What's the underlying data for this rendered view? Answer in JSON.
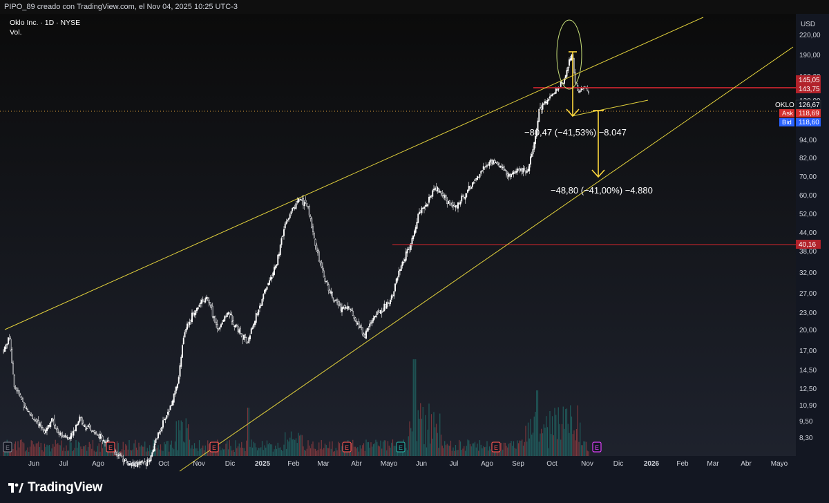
{
  "header": {
    "attribution": "PIPO_89 creado con TradingView.com, el Nov 04, 2025 10:25 UTC-3"
  },
  "legend": {
    "symbol": "Oklo Inc. · 1D · NYSE",
    "volume": "Vol."
  },
  "price_axis": {
    "currency": "USD",
    "ticks": [
      "220,00",
      "190,00",
      "160,00",
      "120,00",
      "94,00",
      "82,00",
      "70,00",
      "60,00",
      "52,00",
      "44,00",
      "38,00",
      "32,00",
      "27,00",
      "23,00",
      "20,00",
      "17,00",
      "14,50",
      "12,50",
      "10,90",
      "9,50",
      "8,30"
    ]
  },
  "price_labels": {
    "level_1": "145,05",
    "level_2": "143,75",
    "symbol_tag": "OKLO",
    "last": "126,67",
    "ask_label": "Ask",
    "ask": "118,69",
    "bid_label": "Bid",
    "bid": "118,60",
    "level_3": "40,16"
  },
  "time_axis": [
    "Jun",
    "Jul",
    "Ago",
    "Sep",
    "Oct",
    "Nov",
    "Dic",
    "2025",
    "Feb",
    "Mar",
    "Abr",
    "Mayo",
    "Jun",
    "Jul",
    "Ago",
    "Sep",
    "Oct",
    "Nov",
    "Dic",
    "2026",
    "Feb",
    "Mar",
    "Abr",
    "Mayo"
  ],
  "annotations": {
    "measure_1": "−80,47 (−41,53%) −8.047",
    "measure_2": "−48,80 (−41,00%) −4.880"
  },
  "earnings_marker": "E",
  "colors": {
    "background": "#131722",
    "candle": "#ffffff",
    "trendline": "#e3d23c",
    "level_line": "#b2222a",
    "volume_up": "#26a69a",
    "volume_down": "#ef5350",
    "ask": "#d32f2f",
    "bid": "#2962ff"
  },
  "footer": {
    "brand": "TradingView",
    "brand_icon": "tradingview-logo-icon"
  },
  "chart_data": {
    "type": "candlestick",
    "title": "Oklo Inc. · 1D · NYSE",
    "y_scale": "log",
    "y_currency": "USD",
    "key_levels": [
      145.05,
      143.75,
      40.16
    ],
    "last_price": 126.67,
    "ask": 118.69,
    "bid": 118.6,
    "approx_close_path": [
      {
        "date": "2024-05",
        "price": 17.0
      },
      {
        "date": "2024-06",
        "price": 10.0
      },
      {
        "date": "2024-07",
        "price": 8.5
      },
      {
        "date": "2024-08",
        "price": 8.0
      },
      {
        "date": "2024-09",
        "price": 6.5
      },
      {
        "date": "2024-10",
        "price": 9.0
      },
      {
        "date": "2024-11",
        "price": 21.0
      },
      {
        "date": "2024-12",
        "price": 22.0
      },
      {
        "date": "2025-01",
        "price": 25.0
      },
      {
        "date": "2025-02",
        "price": 55.0
      },
      {
        "date": "2025-03",
        "price": 28.0
      },
      {
        "date": "2025-04",
        "price": 21.0
      },
      {
        "date": "2025-05",
        "price": 25.0
      },
      {
        "date": "2025-06",
        "price": 52.0
      },
      {
        "date": "2025-07",
        "price": 60.0
      },
      {
        "date": "2025-08",
        "price": 75.0
      },
      {
        "date": "2025-09",
        "price": 110.0
      },
      {
        "date": "2025-10",
        "price": 175.0
      },
      {
        "date": "2025-11",
        "price": 126.67
      }
    ]
  }
}
